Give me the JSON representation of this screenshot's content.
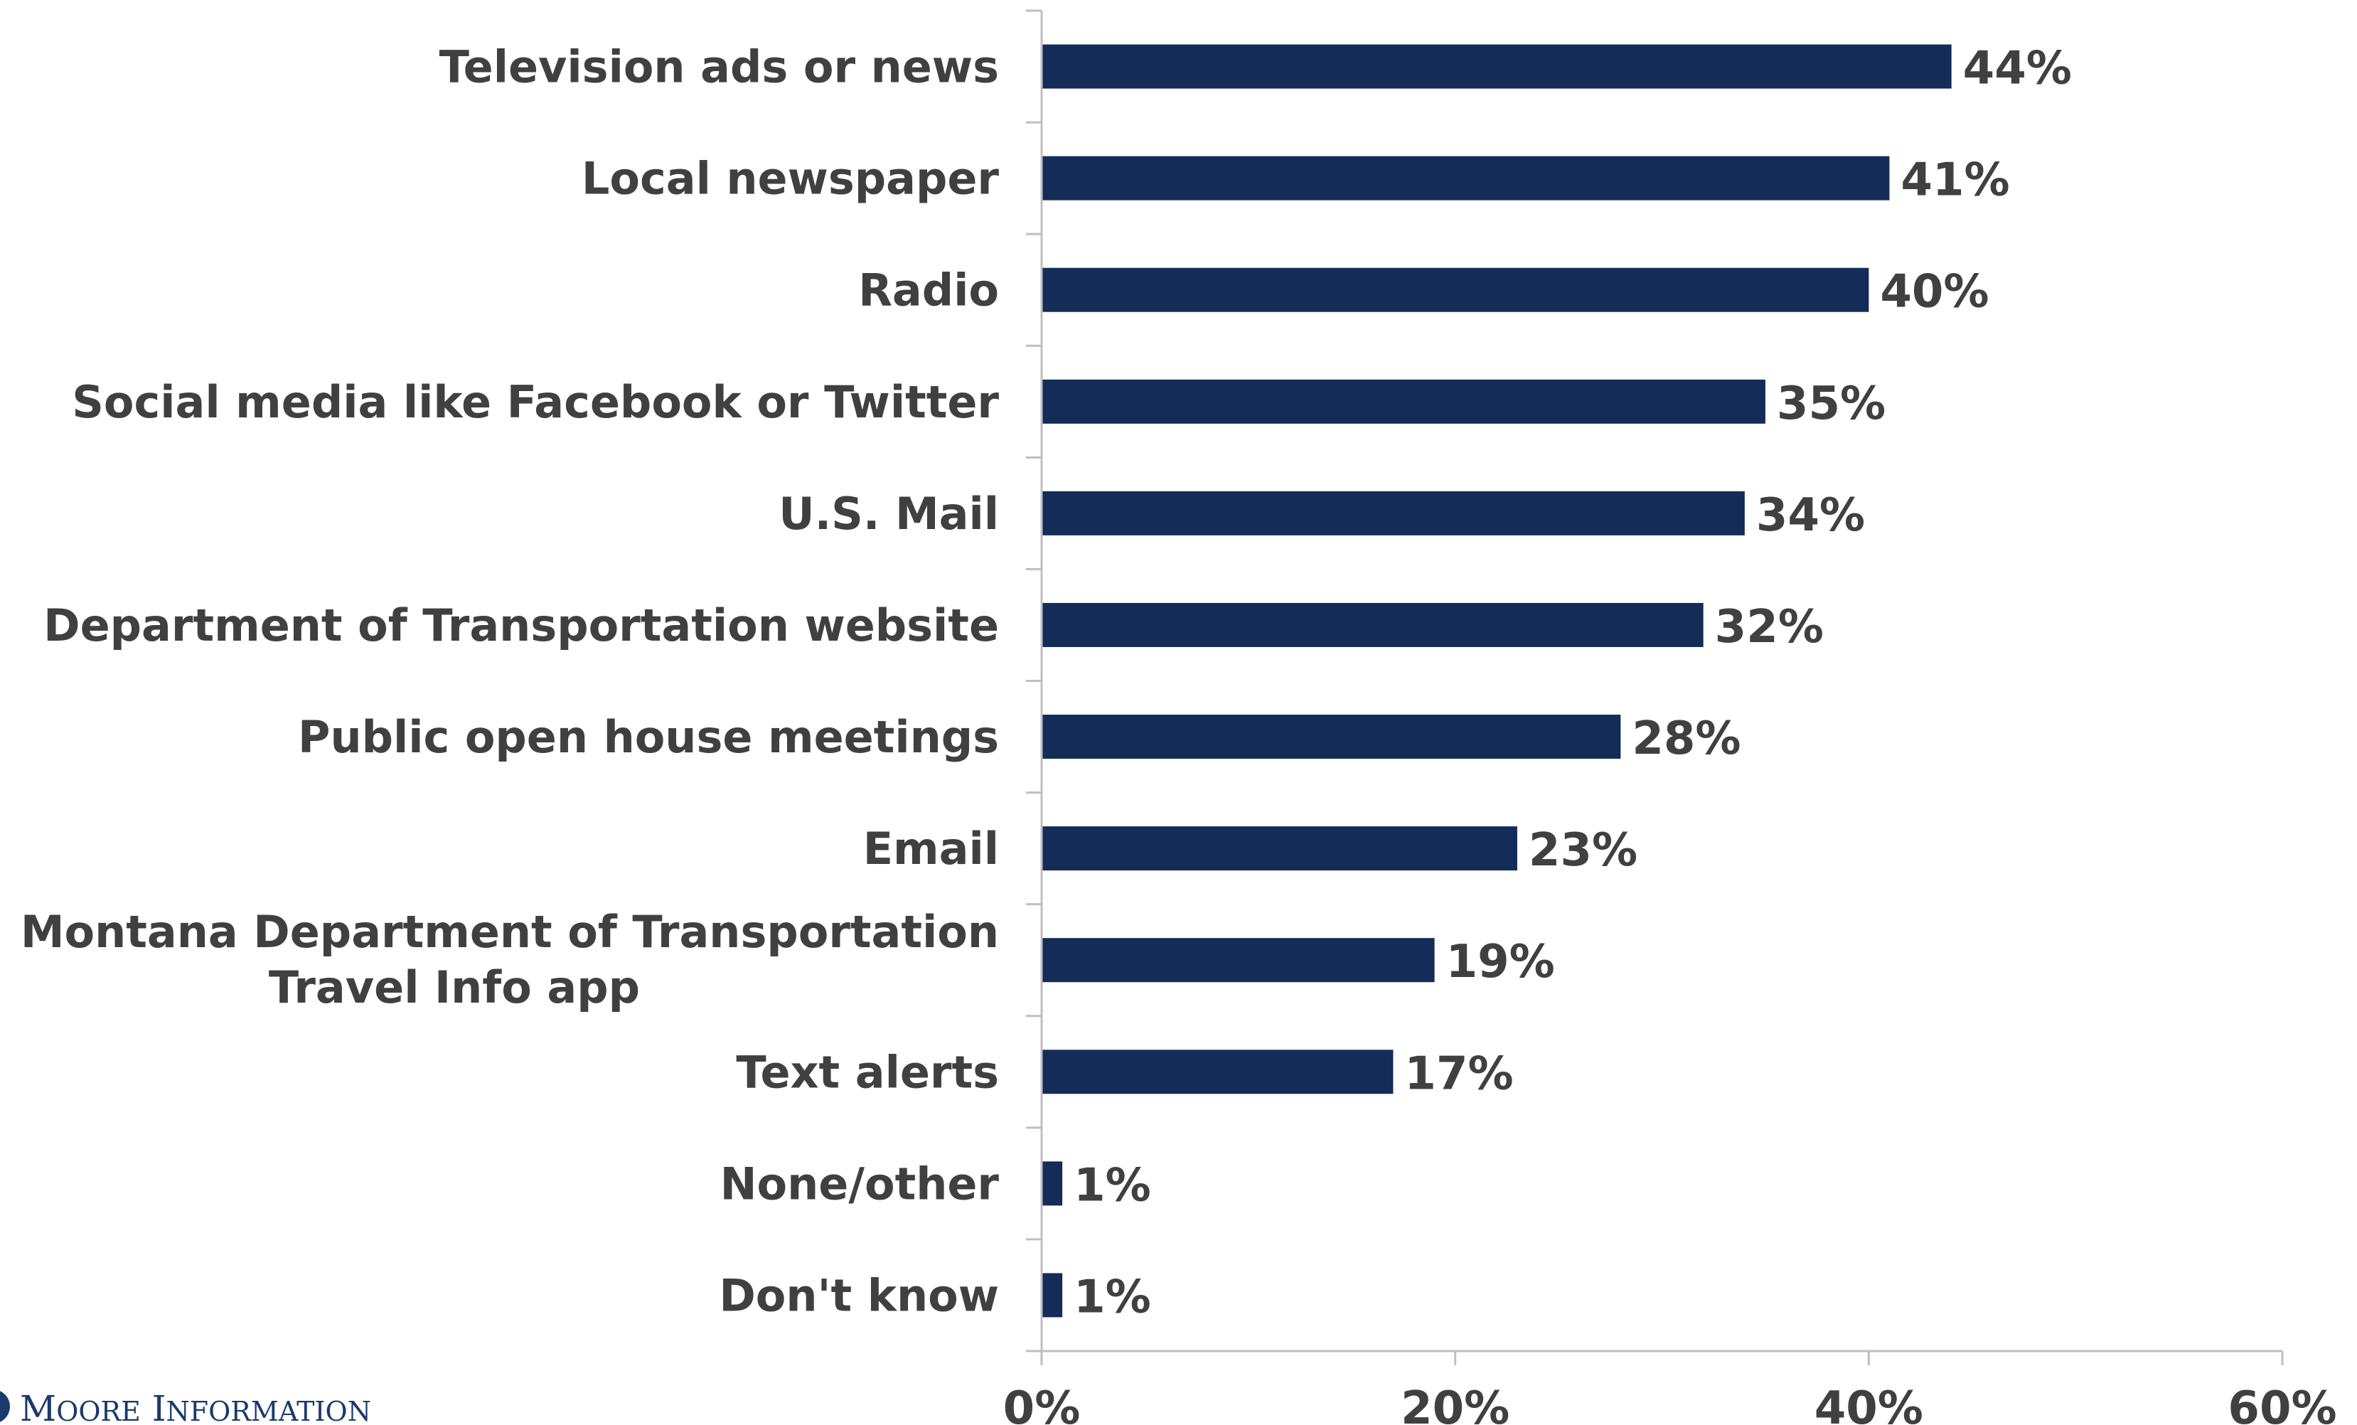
{
  "chart_data": {
    "type": "bar",
    "orientation": "horizontal",
    "categories": [
      "Television ads or news",
      "Local newspaper",
      "Radio",
      "Social media like Facebook or Twitter",
      "U.S. Mail",
      "Department of Transportation website",
      "Public open house meetings",
      "Email",
      "Montana Department of Transportation Travel Info app",
      "Text alerts",
      "None/other",
      "Don't know"
    ],
    "values": [
      44,
      41,
      40,
      35,
      34,
      32,
      28,
      23,
      19,
      17,
      1,
      1
    ],
    "value_labels": [
      "44%",
      "41%",
      "40%",
      "35%",
      "34%",
      "32%",
      "28%",
      "23%",
      "19%",
      "17%",
      "1%",
      "1%"
    ],
    "xlim": [
      0,
      60
    ],
    "xticks": [
      0,
      20,
      40,
      60
    ],
    "xtick_labels": [
      "0%",
      "20%",
      "40%",
      "60%"
    ],
    "bar_color": "#132c58",
    "grid": false,
    "legend": "none",
    "title": "",
    "xlabel": "",
    "ylabel": ""
  },
  "branding": {
    "logo_text": "Moore Information",
    "logo_color": "#1a3a6b"
  }
}
